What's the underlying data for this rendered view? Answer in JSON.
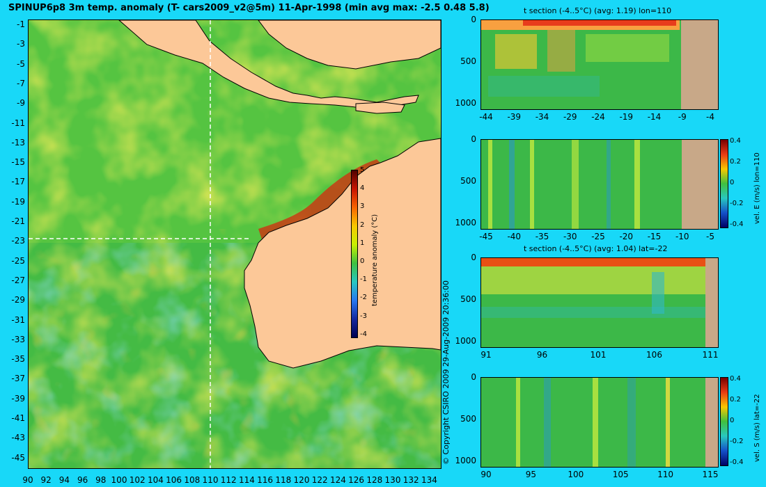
{
  "title": "SPINUP6p8 3m temp. anomaly (T- cars2009_v2@5m) 11-Apr-1998 (min avg max: -2.5 0.48 5.8)",
  "copyright": "© Copyright CSIRO 2009   29-Aug-2009 20:36:00",
  "map": {
    "lat_ticks": [
      "-1",
      "-3",
      "-5",
      "-7",
      "-9",
      "-11",
      "-13",
      "-15",
      "-17",
      "-19",
      "-21",
      "-23",
      "-25",
      "-27",
      "-29",
      "-31",
      "-33",
      "-35",
      "-37",
      "-39",
      "-41",
      "-43",
      "-45"
    ],
    "lon_ticks": [
      "90",
      "92",
      "94",
      "96",
      "98",
      "100",
      "102",
      "104",
      "106",
      "108",
      "110",
      "112",
      "114",
      "116",
      "118",
      "120",
      "122",
      "124",
      "126",
      "128",
      "130",
      "132",
      "134"
    ],
    "section_lon": 110,
    "section_lat": -22,
    "colorbar": {
      "label": "temperature anomaly (°C)",
      "ticks": [
        "5",
        "4",
        "3",
        "2",
        "1",
        "0",
        "-1",
        "-2",
        "-3",
        "-4"
      ],
      "range": [
        -4,
        5
      ]
    }
  },
  "panels": [
    {
      "title": "t section (-4..5°C) (avg: 1.19) lon=110",
      "depth_ticks": [
        "0",
        "500",
        "1000"
      ],
      "x_ticks": [
        "-44",
        "-39",
        "-34",
        "-29",
        "-24",
        "-19",
        "-14",
        "-9",
        "-4"
      ]
    },
    {
      "title": "",
      "depth_ticks": [
        "0",
        "500",
        "1000"
      ],
      "x_ticks": [
        "-45",
        "-40",
        "-35",
        "-30",
        "-25",
        "-20",
        "-15",
        "-10",
        "-5"
      ],
      "colorbar": {
        "label": "vel. E (m/s) lon=110",
        "ticks": [
          "0.4",
          "0.2",
          "0",
          "-0.2",
          "-0.4"
        ]
      }
    },
    {
      "title": "t section (-4..5°C) (avg: 1.04) lat=-22",
      "depth_ticks": [
        "0",
        "500",
        "1000"
      ],
      "x_ticks": [
        "91",
        "96",
        "101",
        "106",
        "111"
      ]
    },
    {
      "title": "",
      "depth_ticks": [
        "0",
        "500",
        "1000"
      ],
      "x_ticks": [
        "90",
        "95",
        "100",
        "105",
        "110",
        "115"
      ],
      "colorbar": {
        "label": "vel. S (m/s) lat=-22",
        "ticks": [
          "0.4",
          "0.2",
          "0",
          "-0.2",
          "-0.4"
        ]
      }
    }
  ],
  "colors": {
    "background": "#18d8f8",
    "ocean_base": "#3cb848",
    "land": "#fcc898",
    "section_land": "#c8a888"
  }
}
